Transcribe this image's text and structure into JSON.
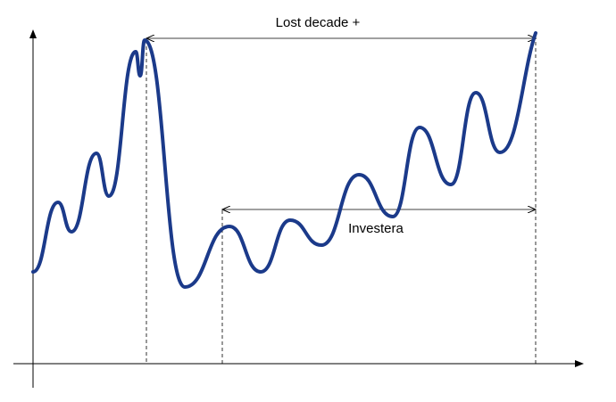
{
  "annotations": {
    "top": "Lost decade +",
    "middle": "Investera"
  }
}
